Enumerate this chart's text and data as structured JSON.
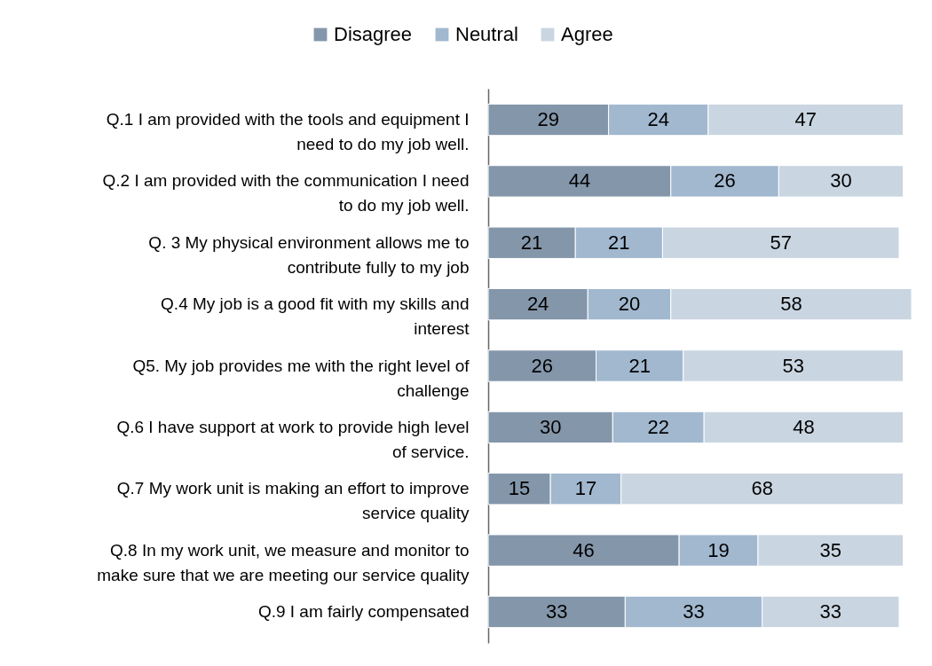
{
  "chart_data": {
    "type": "bar",
    "orientation": "horizontal",
    "stacked": true,
    "data_labels": true,
    "legend": "top",
    "grid": false,
    "categories": [
      "Q.1  I am provided with the tools and equipment I need to do my job well.",
      "Q.2  I am provided with the communication I need to do my job well.",
      "Q. 3  My physical environment allows me to contribute fully to my job",
      "Q.4  My job is a good fit with my skills and interest",
      "Q5.  My job provides me with the right level of challenge",
      "Q.6 I have support at work to provide high level of service.",
      "Q.7 My work unit is making an effort to improve service quality",
      "Q.8  In my work unit, we measure and monitor to make sure that we are meeting our service quality",
      "Q.9 I am fairly compensated"
    ],
    "series": [
      {
        "name": "Disagree",
        "color": "#8496aa",
        "values": [
          29,
          44,
          21,
          24,
          26,
          30,
          15,
          46,
          33
        ]
      },
      {
        "name": "Neutral",
        "color": "#a1b8cf",
        "values": [
          24,
          26,
          21,
          20,
          21,
          22,
          17,
          19,
          33
        ]
      },
      {
        "name": "Agree",
        "color": "#c9d5e1",
        "values": [
          47,
          30,
          57,
          58,
          53,
          48,
          68,
          35,
          33
        ]
      }
    ]
  }
}
